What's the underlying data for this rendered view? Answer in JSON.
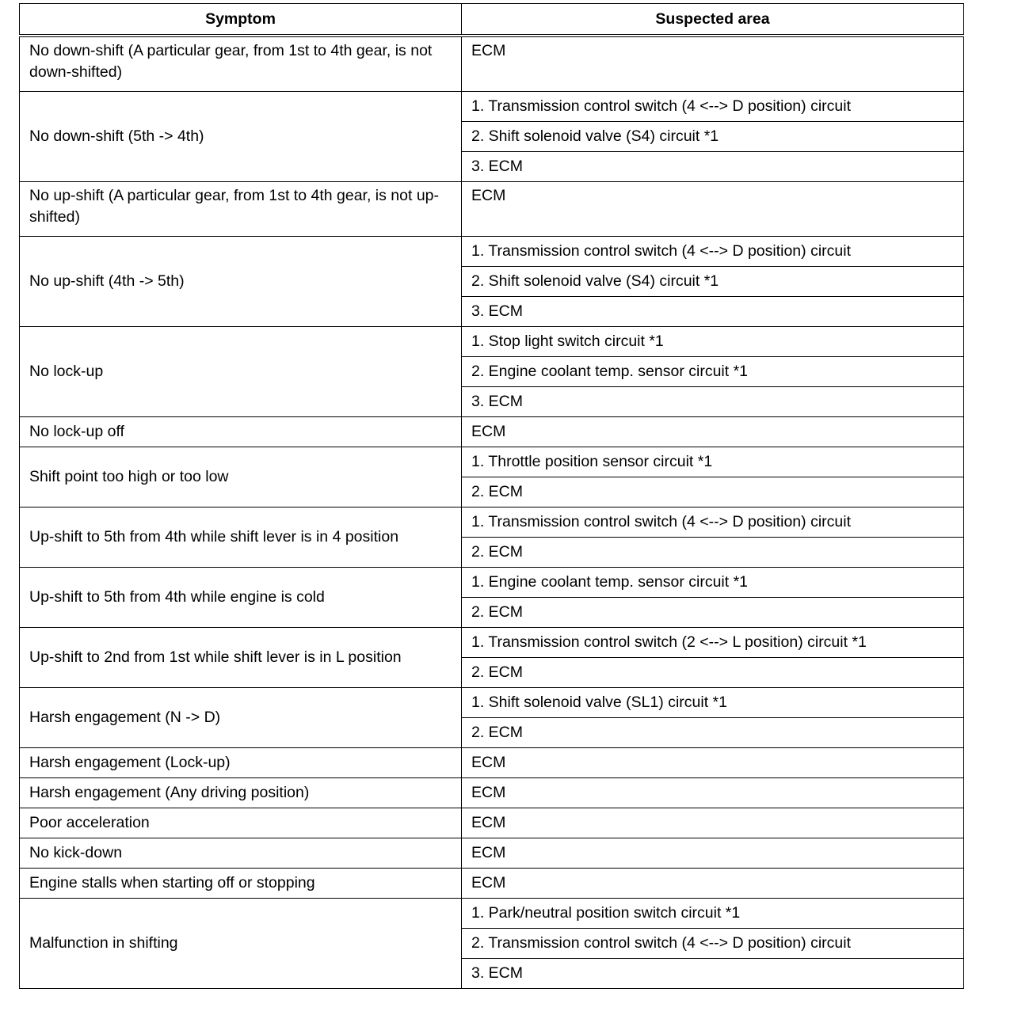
{
  "header": {
    "symptom": "Symptom",
    "suspected_area": "Suspected area"
  },
  "rows": [
    {
      "symptom": "No down-shift (A particular gear, from 1st to 4th gear, is not down-shifted)",
      "areas": [
        "ECM"
      ]
    },
    {
      "symptom": "No down-shift (5th -> 4th)",
      "areas": [
        "1. Transmission control switch (4 <--> D position) circuit",
        "2. Shift solenoid valve (S4) circuit *1",
        "3. ECM"
      ]
    },
    {
      "symptom": "No up-shift (A particular gear, from 1st to 4th gear, is not up-shifted)",
      "areas": [
        "ECM"
      ]
    },
    {
      "symptom": "No up-shift (4th -> 5th)",
      "areas": [
        "1. Transmission control switch (4 <--> D position) circuit",
        "2. Shift solenoid valve (S4) circuit *1",
        "3. ECM"
      ]
    },
    {
      "symptom": "No lock-up",
      "areas": [
        "1. Stop light switch circuit *1",
        "2. Engine coolant temp. sensor circuit *1",
        "3. ECM"
      ]
    },
    {
      "symptom": "No lock-up off",
      "areas": [
        "ECM"
      ]
    },
    {
      "symptom": "Shift point too high or too low",
      "areas": [
        "1. Throttle position sensor circuit *1",
        "2. ECM"
      ]
    },
    {
      "symptom": "Up-shift to 5th from 4th while shift lever is in 4 position",
      "areas": [
        "1. Transmission control switch (4 <--> D position) circuit",
        "2. ECM"
      ]
    },
    {
      "symptom": "Up-shift to 5th from 4th while engine is cold",
      "areas": [
        "1. Engine coolant temp. sensor circuit *1",
        "2. ECM"
      ]
    },
    {
      "symptom": "Up-shift to 2nd from 1st while shift lever is in L position",
      "areas": [
        "1.  Transmission control switch (2 <--> L position) circuit *1",
        "2. ECM"
      ]
    },
    {
      "symptom": "Harsh engagement (N -> D)",
      "areas": [
        "1. Shift solenoid valve (SL1) circuit *1",
        "2. ECM"
      ]
    },
    {
      "symptom": "Harsh engagement (Lock-up)",
      "areas": [
        "ECM"
      ]
    },
    {
      "symptom": "Harsh engagement (Any driving position)",
      "areas": [
        "ECM"
      ]
    },
    {
      "symptom": "Poor acceleration",
      "areas": [
        "ECM"
      ]
    },
    {
      "symptom": "No kick-down",
      "areas": [
        "ECM"
      ]
    },
    {
      "symptom": "Engine stalls when starting off or stopping",
      "areas": [
        "ECM"
      ]
    },
    {
      "symptom": "Malfunction in shifting",
      "areas": [
        "1. Park/neutral position switch circuit *1",
        "2.  Transmission control switch (4 <--> D position) circuit",
        "3. ECM"
      ]
    }
  ]
}
